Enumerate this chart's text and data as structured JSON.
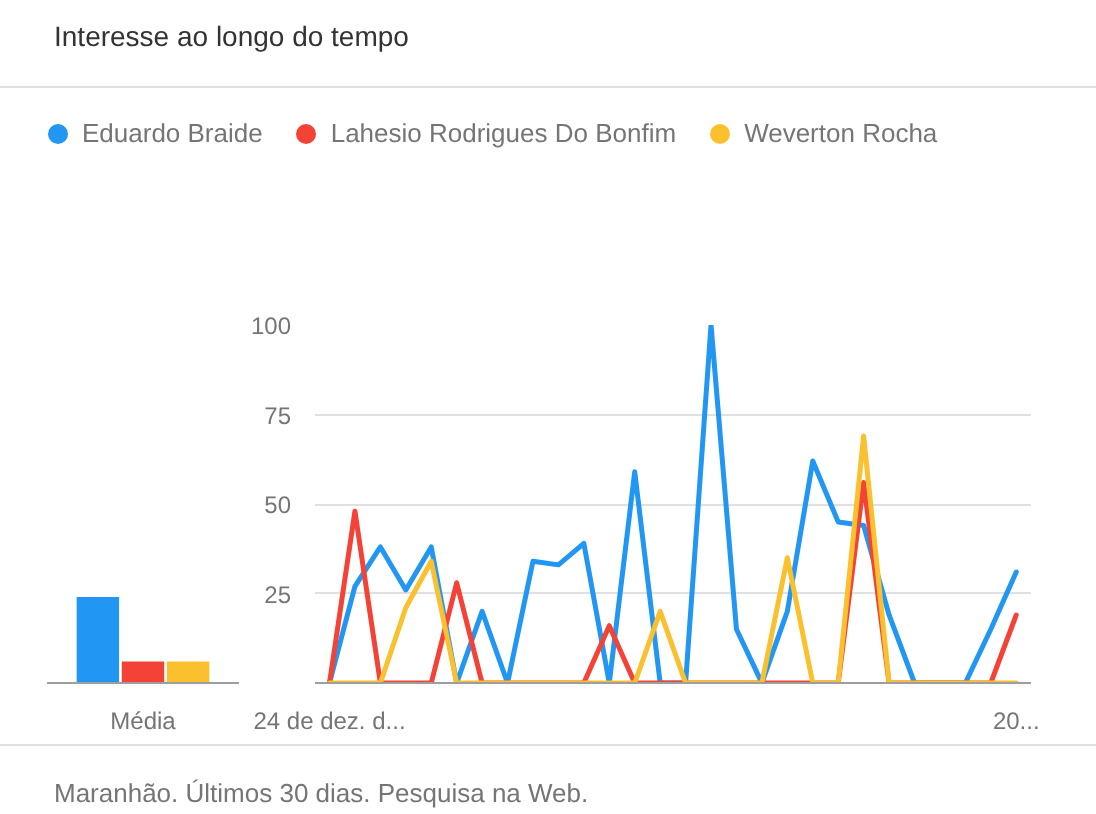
{
  "chart_data": [
    {
      "type": "bar",
      "categories": [
        "Média"
      ],
      "series": [
        {
          "color": "#2196f3",
          "values": [
            24
          ]
        },
        {
          "color": "#f44336",
          "values": [
            6
          ]
        },
        {
          "color": "#fbc02d",
          "values": [
            6
          ]
        }
      ],
      "ylim": [
        0,
        100
      ],
      "tick_labels": "x"
    },
    {
      "type": "line",
      "title": "Interesse ao longo do tempo",
      "categories": [
        "24 de dez. d...",
        null,
        null,
        null,
        null,
        null,
        null,
        null,
        null,
        null,
        null,
        null,
        null,
        null,
        null,
        null,
        null,
        null,
        null,
        null,
        null,
        null,
        null,
        null,
        null,
        null,
        null,
        "20..."
      ],
      "series": [
        {
          "name": "Eduardo Braide",
          "color": "#2196f3",
          "values": [
            0,
            27,
            38,
            26,
            38,
            0,
            20,
            0,
            34,
            33,
            39,
            0,
            59,
            0,
            0,
            100,
            15,
            0,
            20,
            62,
            45,
            44,
            19,
            0,
            0,
            0,
            15,
            31
          ]
        },
        {
          "name": "Lahesio Rodrigues Do Bonfim",
          "color": "#f44336",
          "values": [
            0,
            48,
            0,
            0,
            0,
            28,
            0,
            0,
            0,
            0,
            0,
            16,
            0,
            0,
            0,
            0,
            0,
            0,
            0,
            0,
            0,
            56,
            0,
            0,
            0,
            0,
            0,
            19
          ]
        },
        {
          "name": "Weverton Rocha",
          "color": "#fbc02d",
          "values": [
            0,
            0,
            0,
            21,
            34,
            0,
            0,
            0,
            0,
            0,
            0,
            0,
            0,
            20,
            0,
            0,
            0,
            0,
            35,
            0,
            0,
            69,
            0,
            0,
            0,
            0,
            0,
            0
          ]
        }
      ],
      "ylim": [
        0,
        100
      ],
      "yticks": [
        25,
        50,
        75,
        100
      ],
      "grid": "y",
      "legend": "top",
      "annotations": [
        "Maranhão. Últimos 30 dias. Pesquisa na Web."
      ]
    }
  ]
}
